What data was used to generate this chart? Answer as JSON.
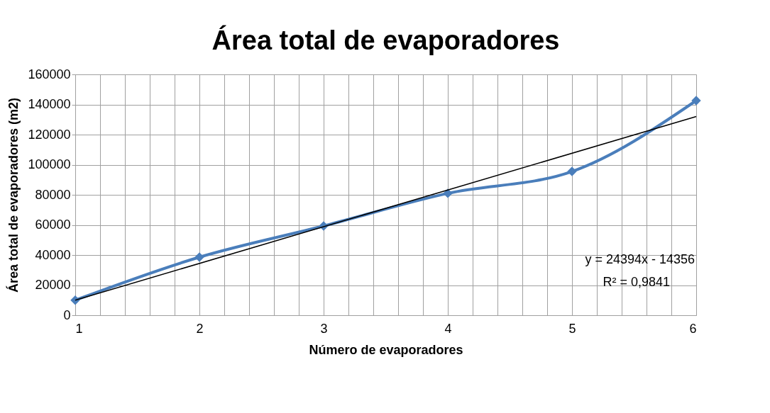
{
  "chart_data": {
    "type": "line",
    "title": "Área total de evaporadores",
    "xlabel": "Número de evaporadores",
    "ylabel": "Área  total de evaporadores (m2)",
    "x": [
      1,
      2,
      3,
      4,
      5,
      6
    ],
    "series": [
      {
        "color": "#4a7ebb",
        "marker": "diamond",
        "values": [
          10000,
          38600,
          59300,
          81000,
          95500,
          142600
        ]
      },
      {
        "color": "#000000",
        "marker": "none",
        "x": [
          1,
          6
        ],
        "values": [
          10000,
          132000
        ]
      }
    ],
    "xlim": [
      1,
      6
    ],
    "xticks": [
      1,
      {
        "value": 1.2,
        "label": null
      },
      {
        "value": 1.4,
        "label": null
      },
      {
        "value": 1.6,
        "label": null
      },
      {
        "value": 1.8,
        "label": null
      },
      2,
      {
        "value": 2.2,
        "label": null
      },
      {
        "value": 2.4,
        "label": null
      },
      {
        "value": 2.6,
        "label": null
      },
      {
        "value": 2.8,
        "label": null
      },
      3,
      {
        "value": 3.2,
        "label": null
      },
      {
        "value": 3.4,
        "label": null
      },
      {
        "value": 3.6,
        "label": null
      },
      {
        "value": 3.8,
        "label": null
      },
      4,
      {
        "value": 4.2,
        "label": null
      },
      {
        "value": 4.4,
        "label": null
      },
      {
        "value": 4.6,
        "label": null
      },
      {
        "value": 4.8,
        "label": null
      },
      5,
      {
        "value": 5.2,
        "label": null
      },
      {
        "value": 5.4,
        "label": null
      },
      {
        "value": 5.6,
        "label": null
      },
      {
        "value": 5.8,
        "label": null
      },
      6
    ],
    "ylim": [
      0,
      160000
    ],
    "yticks": [
      0,
      20000,
      40000,
      60000,
      80000,
      100000,
      120000,
      140000,
      160000
    ],
    "annotations": [
      "y = 24394x - 14356",
      "R² = 0,9841"
    ],
    "grid": true
  }
}
